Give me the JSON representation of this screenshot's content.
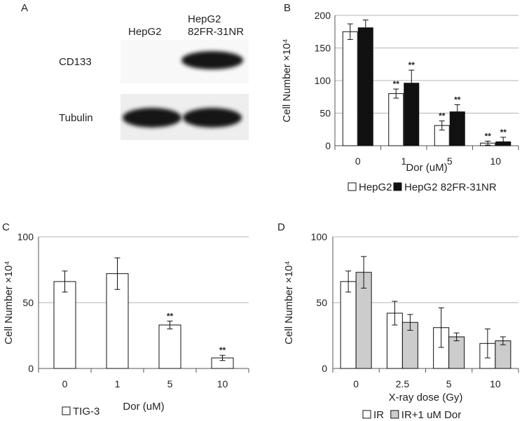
{
  "western_blot": {
    "letter": "A",
    "lane_labels": [
      "HepG2",
      "HepG2\n82FR-31NR"
    ],
    "row_labels": [
      "CD133",
      "Tubulin"
    ]
  },
  "chart_data": [
    {
      "letter": "B",
      "type": "bar",
      "categories": [
        "0",
        "1",
        "5",
        "10"
      ],
      "xlabel": "Dor (uM)",
      "ylabel": "Cell Number ×10⁴",
      "ylim": [
        0,
        200
      ],
      "yticks": [
        0,
        50,
        100,
        150,
        200
      ],
      "grid": true,
      "legend_position": "bottom",
      "series": [
        {
          "name": "HepG2",
          "color": "#ffffff",
          "values": [
            175,
            80,
            31,
            4
          ],
          "errors": [
            12,
            7,
            7,
            3
          ],
          "sig": [
            "",
            "**",
            "**",
            "**"
          ]
        },
        {
          "name": "HepG2 82FR-31NR",
          "color": "#111111",
          "values": [
            181,
            96,
            52,
            6
          ],
          "errors": [
            12,
            20,
            11,
            7
          ],
          "sig": [
            "",
            "**",
            "**",
            "**"
          ]
        }
      ]
    },
    {
      "letter": "C",
      "type": "bar",
      "categories": [
        "0",
        "1",
        "5",
        "10"
      ],
      "xlabel": "Dor (uM)",
      "ylabel": "Cell Number ×10⁴",
      "ylim": [
        0,
        100
      ],
      "yticks": [
        0,
        50,
        100
      ],
      "grid": true,
      "legend_position": "bottom",
      "series": [
        {
          "name": "TIG-3",
          "color": "#ffffff",
          "values": [
            66,
            72,
            33,
            8
          ],
          "errors": [
            8,
            12,
            3,
            2
          ],
          "sig": [
            "",
            "",
            "**",
            "**"
          ]
        }
      ]
    },
    {
      "letter": "D",
      "type": "bar",
      "categories": [
        "0",
        "2.5",
        "5",
        "10"
      ],
      "xlabel": "X-ray dose (Gy)",
      "ylabel": "Cell Number ×10⁴",
      "ylim": [
        0,
        100
      ],
      "yticks": [
        0,
        50,
        100
      ],
      "grid": true,
      "legend_position": "bottom",
      "series": [
        {
          "name": "IR",
          "color": "#ffffff",
          "values": [
            66,
            42,
            31,
            19
          ],
          "errors": [
            8,
            9,
            15,
            11
          ],
          "sig": [
            "",
            "",
            "",
            ""
          ]
        },
        {
          "name": "IR+1 uM Dor",
          "color": "#cccccc",
          "values": [
            73,
            35,
            24,
            21
          ],
          "errors": [
            12,
            6,
            3,
            3
          ],
          "sig": [
            "",
            "",
            "",
            ""
          ]
        }
      ]
    }
  ]
}
